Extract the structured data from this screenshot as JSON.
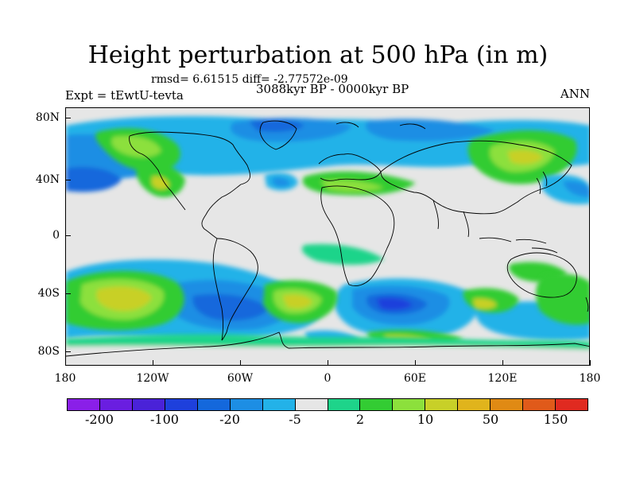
{
  "title": "Height perturbation at 500 hPa (in m)",
  "stats_text": "rmsd= 6.61515 diff= -2.77572e-09",
  "period_text": "3088kyr BP - 0000kyr BP",
  "experiment_text": "Expt = tEwtU-tevta",
  "season_text": "ANN",
  "lat_labels": [
    "80N",
    "40N",
    "0",
    "40S",
    "80S"
  ],
  "lon_labels": [
    "180",
    "120W",
    "60W",
    "0",
    "60E",
    "120E",
    "180"
  ],
  "colorbar": {
    "colors": [
      "#8a1fe8",
      "#6a1ee0",
      "#4a22d8",
      "#1e40dc",
      "#1468dc",
      "#1d8ee4",
      "#23b2e8",
      "#e6e6e6",
      "#1ed48a",
      "#33cc33",
      "#8ce03c",
      "#c8d028",
      "#e0b41c",
      "#e08a14",
      "#e05a1a",
      "#e02a20"
    ],
    "labels": [
      "-200",
      "-100",
      "-20",
      "-5",
      "2",
      "10",
      "50",
      "150"
    ]
  },
  "map_colors": {
    "background": "#e6e6e6",
    "coastline": "#000000"
  }
}
